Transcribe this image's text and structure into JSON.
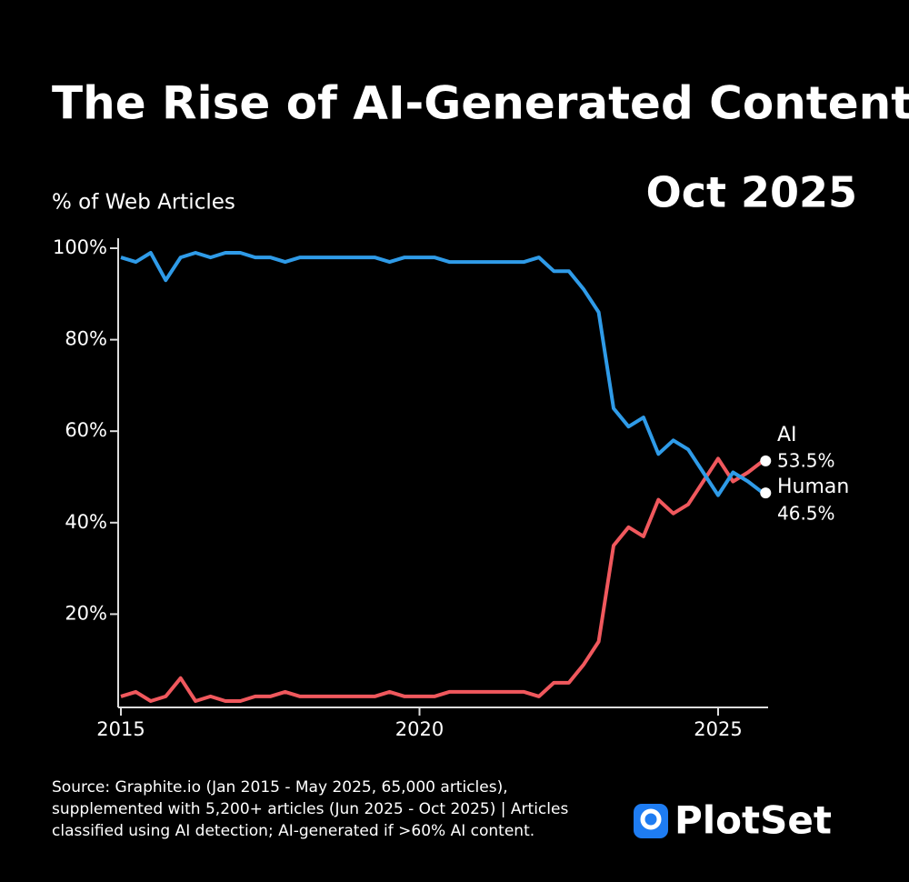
{
  "chart_data": {
    "type": "line",
    "title": "The Rise of AI-Generated Content",
    "date_label": "Oct 2025",
    "y_label": "% of Web Articles",
    "x": [
      2015.0,
      2015.25,
      2015.5,
      2015.75,
      2016.0,
      2016.25,
      2016.5,
      2016.75,
      2017.0,
      2017.25,
      2017.5,
      2017.75,
      2018.0,
      2018.25,
      2018.5,
      2018.75,
      2019.0,
      2019.25,
      2019.5,
      2019.75,
      2020.0,
      2020.25,
      2020.5,
      2020.75,
      2021.0,
      2021.25,
      2021.5,
      2021.75,
      2022.0,
      2022.25,
      2022.5,
      2022.75,
      2023.0,
      2023.25,
      2023.5,
      2023.75,
      2024.0,
      2024.25,
      2024.5,
      2024.75,
      2025.0,
      2025.25,
      2025.5,
      2025.75
    ],
    "series": [
      {
        "name": "AI",
        "color": "#f0585d",
        "values": [
          2,
          3,
          1,
          2,
          6,
          1,
          2,
          1,
          1,
          2,
          2,
          3,
          2,
          2,
          2,
          2,
          2,
          2,
          3,
          2,
          2,
          2,
          3,
          3,
          3,
          3,
          3,
          3,
          2,
          5,
          5,
          9,
          14,
          35,
          39,
          37,
          45,
          42,
          44,
          49,
          54,
          49,
          51,
          53.5
        ],
        "value_labels": [
          null,
          null,
          null,
          null,
          null,
          null,
          null,
          null,
          null,
          null,
          null,
          null,
          null,
          null,
          null,
          null,
          null,
          null,
          null,
          null,
          null,
          null,
          null,
          null,
          null,
          null,
          null,
          null,
          null,
          null,
          null,
          null,
          null,
          null,
          null,
          null,
          null,
          null,
          null,
          null,
          null,
          null,
          null,
          "53.5%"
        ]
      },
      {
        "name": "Human",
        "color": "#2f9be8",
        "values": [
          98,
          97,
          99,
          93,
          98,
          99,
          98,
          99,
          99,
          98,
          98,
          97,
          98,
          98,
          98,
          98,
          98,
          98,
          97,
          98,
          98,
          98,
          97,
          97,
          97,
          97,
          97,
          97,
          98,
          95,
          95,
          91,
          86,
          65,
          61,
          63,
          55,
          58,
          56,
          51,
          46,
          51,
          49,
          46.5
        ],
        "value_labels": [
          null,
          null,
          null,
          null,
          null,
          null,
          null,
          null,
          null,
          null,
          null,
          null,
          null,
          null,
          null,
          null,
          null,
          null,
          null,
          null,
          null,
          null,
          null,
          null,
          null,
          null,
          null,
          null,
          null,
          null,
          null,
          null,
          null,
          null,
          null,
          null,
          null,
          null,
          null,
          null,
          null,
          null,
          null,
          "46.5%"
        ]
      }
    ],
    "xlim": [
      2015,
      2025.85
    ],
    "xticks": [
      2015,
      2020,
      2025
    ],
    "ylim": [
      0,
      100
    ],
    "yticks": [
      {
        "value": 20,
        "label": "20%"
      },
      {
        "value": 40,
        "label": "40%"
      },
      {
        "value": 60,
        "label": "60%"
      },
      {
        "value": 80,
        "label": "80%"
      },
      {
        "value": 100,
        "label": "100%"
      }
    ],
    "source": [
      "Source: Graphite.io (Jan 2015 - May 2025, 65,000 articles),",
      "supplemented with 5,200+ articles (Jun 2025 - Oct 2025) | Articles",
      "classified using AI detection; AI-generated if >60% AI content."
    ],
    "brand": "PlotSet"
  }
}
